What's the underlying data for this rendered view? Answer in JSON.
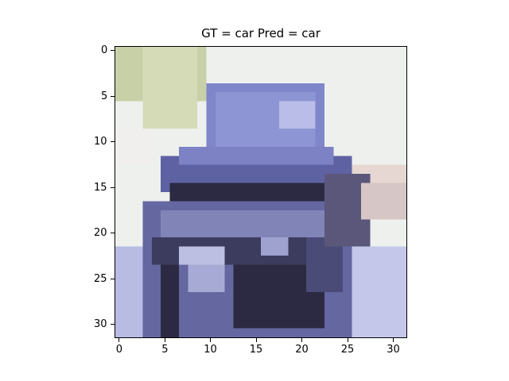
{
  "title": "GT = car Pred = car",
  "labels": {
    "ground_truth": "car",
    "prediction": "car"
  },
  "image": {
    "resolution": [
      32,
      32
    ],
    "palette": {
      "bg_light": "#eef0ee",
      "bg_green": "#c8d0a8",
      "bg_pink": "#e6d7d2",
      "car_roof": "#7f86c9",
      "car_body": "#6467a0",
      "car_dark": "#2b2a42",
      "car_mid": "#4a4b77",
      "car_highlight": "#bcbfe2",
      "road": "#b8bbe2"
    }
  },
  "axes": {
    "x_ticks": [
      "0",
      "5",
      "10",
      "15",
      "20",
      "25",
      "30"
    ],
    "y_ticks": [
      "0",
      "5",
      "10",
      "15",
      "20",
      "25",
      "30"
    ],
    "xlim": [
      -0.5,
      31.5
    ],
    "ylim": [
      31.5,
      -0.5
    ]
  }
}
